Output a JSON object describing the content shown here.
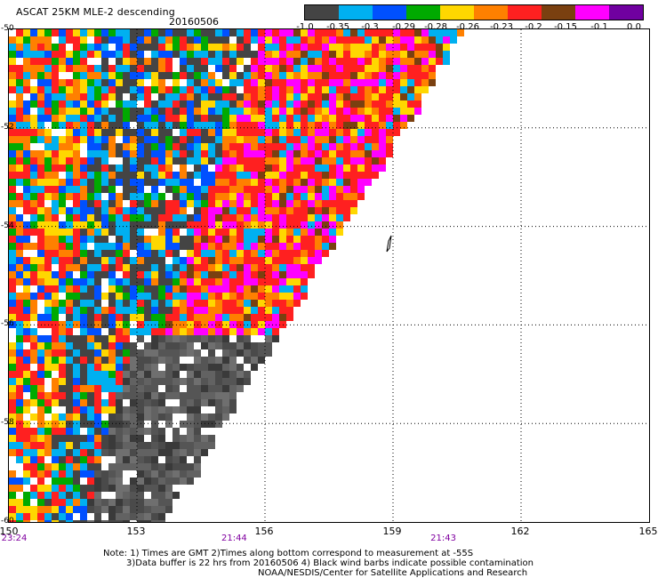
{
  "header": {
    "title": "ASCAT 25KM MLE-2 descending",
    "date": "20160506"
  },
  "colorbar": {
    "colors": [
      "#444444",
      "#00b0f0",
      "#0050ff",
      "#00aa00",
      "#ffd700",
      "#ff8000",
      "#ff2020",
      "#7a4010",
      "#ff00ff",
      "#7000a0"
    ],
    "labels": [
      "-1.0",
      "-0.35",
      "-0.3",
      "-0.29",
      "-0.28",
      "-0.26",
      "-0.23",
      "-0.2",
      "-0.15",
      "-0.1",
      "0.0"
    ]
  },
  "axes": {
    "lat_labels": [
      "-50",
      "-52",
      "-54",
      "-56",
      "-58",
      "-60"
    ],
    "lat_values": [
      -50,
      -52,
      -54,
      -56,
      -58,
      -60
    ],
    "lon_labels": [
      "150",
      "153",
      "156",
      "159",
      "162",
      "165"
    ],
    "lon_values": [
      150,
      153,
      156,
      159,
      162,
      165
    ],
    "lat_range": [
      -60,
      -50
    ],
    "lon_range": [
      150,
      165
    ],
    "gridlines": true
  },
  "times": [
    {
      "label": "23:24",
      "lon": 150
    },
    {
      "label": "21:44",
      "lon": 155.3
    },
    {
      "label": "21:43",
      "lon": 160.2
    }
  ],
  "notes": {
    "line1": "Note: 1) Times are GMT 2)Times along bottom correspond to measurement at -55S",
    "line2": "3)Data buffer is 22 hrs from 20160506 4) Black wind barbs indicate possible contamination",
    "line3": "NOAA/NESDIS/Center for Satellite Applications and Research"
  },
  "chart_data": {
    "type": "heatmap",
    "title": "ASCAT 25KM MLE-2 descending",
    "x_range": [
      150,
      165
    ],
    "y_range": [
      -60,
      -50
    ],
    "x_ticks": [
      150,
      153,
      156,
      159,
      162,
      165
    ],
    "y_ticks": [
      -50,
      -52,
      -54,
      -56,
      -58,
      -60
    ],
    "swath_edge": [
      [
        150,
        -50
      ],
      [
        160.7,
        -50
      ],
      [
        153.7,
        -60
      ],
      [
        150,
        -60
      ]
    ],
    "value_bins": [
      -1.0,
      -0.35,
      -0.3,
      -0.29,
      -0.28,
      -0.26,
      -0.23,
      -0.2,
      -0.15,
      -0.1,
      0.0
    ]
  }
}
